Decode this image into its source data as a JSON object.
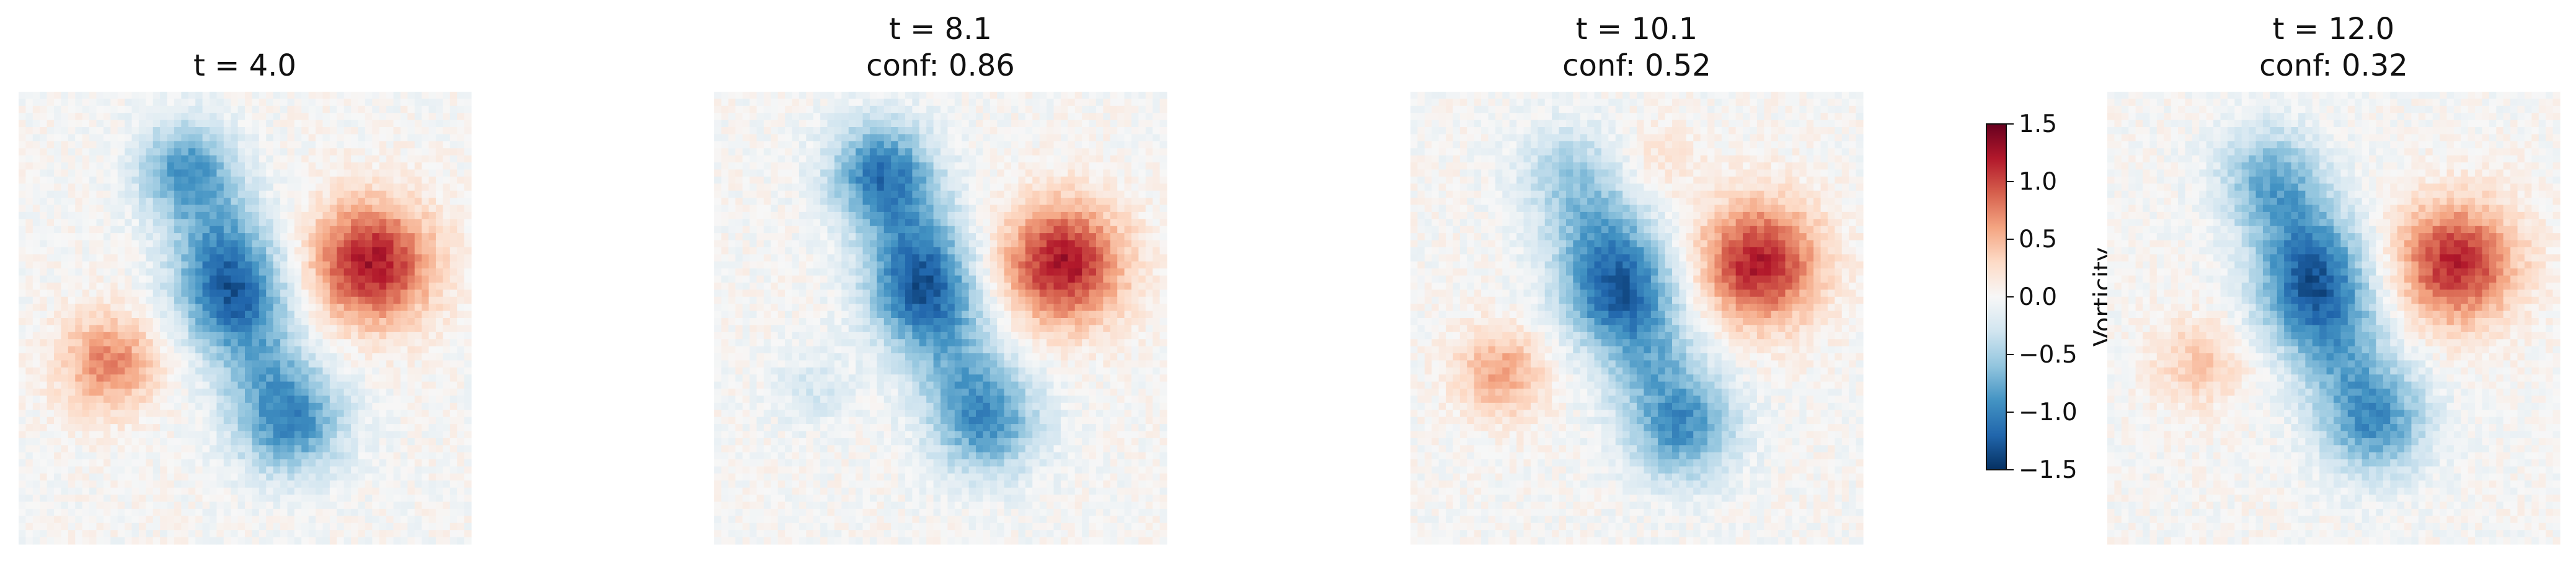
{
  "chart_data": [
    {
      "type": "heatmap",
      "title": "t = 4.0",
      "subtitle": "",
      "field": {
        "blobs": [
          {
            "cx": 0.37,
            "cy": 0.17,
            "amp": -0.85,
            "sigma": 0.075
          },
          {
            "cx": 0.47,
            "cy": 0.44,
            "amp": -1.15,
            "sigma": 0.085
          },
          {
            "cx": 0.6,
            "cy": 0.73,
            "amp": -0.95,
            "sigma": 0.085
          },
          {
            "cx": 0.44,
            "cy": 0.3,
            "amp": -0.45,
            "sigma": 0.08
          },
          {
            "cx": 0.53,
            "cy": 0.59,
            "amp": -0.45,
            "sigma": 0.08
          },
          {
            "cx": 0.78,
            "cy": 0.38,
            "amp": 1.25,
            "sigma": 0.095
          },
          {
            "cx": 0.2,
            "cy": 0.6,
            "amp": 0.75,
            "sigma": 0.075
          }
        ],
        "noise": 0.08,
        "seed": 11
      }
    },
    {
      "type": "heatmap",
      "title": "t = 8.1",
      "subtitle": "conf: 0.86",
      "field": {
        "blobs": [
          {
            "cx": 0.37,
            "cy": 0.18,
            "amp": -1.05,
            "sigma": 0.08
          },
          {
            "cx": 0.46,
            "cy": 0.44,
            "amp": -1.15,
            "sigma": 0.085
          },
          {
            "cx": 0.6,
            "cy": 0.73,
            "amp": -0.9,
            "sigma": 0.085
          },
          {
            "cx": 0.44,
            "cy": 0.31,
            "amp": -0.45,
            "sigma": 0.08
          },
          {
            "cx": 0.53,
            "cy": 0.59,
            "amp": -0.45,
            "sigma": 0.08
          },
          {
            "cx": 0.77,
            "cy": 0.38,
            "amp": 1.25,
            "sigma": 0.095
          },
          {
            "cx": 0.22,
            "cy": 0.66,
            "amp": -0.25,
            "sigma": 0.06
          }
        ],
        "noise": 0.08,
        "seed": 23
      }
    },
    {
      "type": "heatmap",
      "title": "t = 10.1",
      "subtitle": "conf: 0.52",
      "field": {
        "blobs": [
          {
            "cx": 0.35,
            "cy": 0.18,
            "amp": -0.45,
            "sigma": 0.08
          },
          {
            "cx": 0.46,
            "cy": 0.44,
            "amp": -1.15,
            "sigma": 0.09
          },
          {
            "cx": 0.6,
            "cy": 0.74,
            "amp": -0.9,
            "sigma": 0.085
          },
          {
            "cx": 0.42,
            "cy": 0.3,
            "amp": -0.45,
            "sigma": 0.08
          },
          {
            "cx": 0.53,
            "cy": 0.59,
            "amp": -0.45,
            "sigma": 0.08
          },
          {
            "cx": 0.77,
            "cy": 0.38,
            "amp": 1.2,
            "sigma": 0.095
          },
          {
            "cx": 0.2,
            "cy": 0.62,
            "amp": 0.6,
            "sigma": 0.07
          },
          {
            "cx": 0.55,
            "cy": 0.15,
            "amp": 0.2,
            "sigma": 0.06
          }
        ],
        "noise": 0.08,
        "seed": 37
      }
    },
    {
      "type": "heatmap",
      "title": "t = 12.0",
      "subtitle": "conf: 0.32",
      "field": {
        "blobs": [
          {
            "cx": 0.36,
            "cy": 0.19,
            "amp": -0.7,
            "sigma": 0.08
          },
          {
            "cx": 0.46,
            "cy": 0.44,
            "amp": -1.15,
            "sigma": 0.09
          },
          {
            "cx": 0.59,
            "cy": 0.73,
            "amp": -0.9,
            "sigma": 0.085
          },
          {
            "cx": 0.43,
            "cy": 0.31,
            "amp": -0.45,
            "sigma": 0.08
          },
          {
            "cx": 0.52,
            "cy": 0.59,
            "amp": -0.45,
            "sigma": 0.08
          },
          {
            "cx": 0.77,
            "cy": 0.38,
            "amp": 1.15,
            "sigma": 0.095
          },
          {
            "cx": 0.2,
            "cy": 0.6,
            "amp": 0.4,
            "sigma": 0.07
          }
        ],
        "noise": 0.08,
        "seed": 53
      }
    }
  ],
  "colorbar": {
    "label": "Vorticity",
    "vmin": -1.5,
    "vmax": 1.5,
    "ticks": [
      1.5,
      1.0,
      0.5,
      0.0,
      -0.5,
      -1.0,
      -1.5
    ],
    "tick_labels": [
      "1.5",
      "1.0",
      "0.5",
      "0.0",
      "−0.5",
      "−1.0",
      "−1.5"
    ],
    "colormap": "RdBu_r",
    "colors": [
      "#053061",
      "#2166ac",
      "#4393c3",
      "#92c5de",
      "#d1e5f0",
      "#f7f7f7",
      "#fddbc7",
      "#f4a582",
      "#d6604d",
      "#b2182b",
      "#67001f"
    ]
  }
}
